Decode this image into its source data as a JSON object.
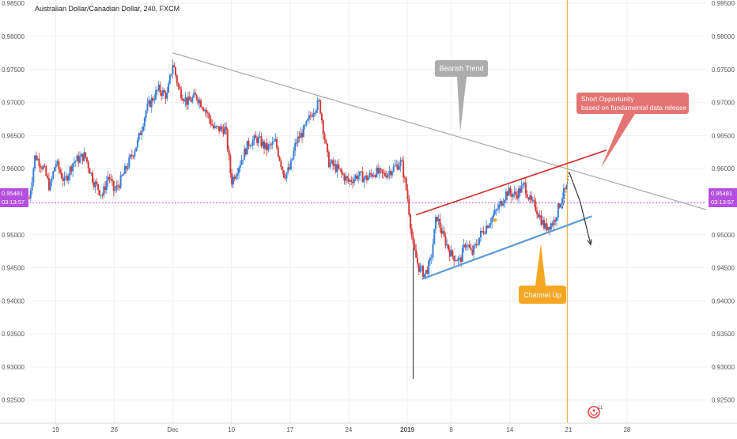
{
  "header": {
    "title": "Australian Dollar/Canadian Dollar, 240, FXCM"
  },
  "colors": {
    "up": "#3a7fd6",
    "down": "#d43a3a",
    "trend": "#a8a8a8",
    "resistance": "#d42a2a",
    "support": "#5a9ad6",
    "price_line": "#c050e0",
    "event_line": "#f5a623",
    "bubble_grey": "#a9a9a9",
    "bubble_red": "#e57373",
    "bubble_orange": "#f5a623"
  },
  "price_badge": {
    "price": "0.95481",
    "timer": "03:13:57"
  },
  "annotations": {
    "bearish": "Bearish Trend",
    "short_line1": "Short Opportunity",
    "short_line2": "based on fundamental data release",
    "channel": "Channel Up"
  },
  "event_marker": {
    "count": "11"
  },
  "chart_data": {
    "type": "candlestick",
    "title": "Australian Dollar/Canadian Dollar, 240, FXCM",
    "ylim": [
      0.9215,
      0.9855
    ],
    "yticks": [
      0.985,
      0.98,
      0.975,
      0.97,
      0.965,
      0.96,
      0.955,
      0.95,
      0.945,
      0.94,
      0.935,
      0.93,
      0.925
    ],
    "ytick_labels": [
      "0.98500",
      "0.98000",
      "0.97500",
      "0.97000",
      "0.96500",
      "0.96000",
      "0.95500",
      "0.95000",
      "0.94500",
      "0.94000",
      "0.93500",
      "0.93000",
      "0.92500"
    ],
    "xlim": [
      -0.45,
      11.1
    ],
    "xticks": [
      {
        "label": "19",
        "x": 0.0
      },
      {
        "label": "26",
        "x": 1.0
      },
      {
        "label": "Dec",
        "x": 2.0
      },
      {
        "label": "10",
        "x": 3.0
      },
      {
        "label": "17",
        "x": 4.0
      },
      {
        "label": "24",
        "x": 5.0
      },
      {
        "label": "2019",
        "x": 6.0
      },
      {
        "label": "8",
        "x": 6.75
      },
      {
        "label": "14",
        "x": 7.75
      },
      {
        "label": "21",
        "x": 8.75
      },
      {
        "label": "28",
        "x": 9.75
      }
    ],
    "current_price": 0.95481,
    "keypoints": [
      [
        -0.45,
        0.9555
      ],
      [
        -0.35,
        0.962
      ],
      [
        -0.2,
        0.96
      ],
      [
        -0.1,
        0.957
      ],
      [
        0.0,
        0.961
      ],
      [
        0.15,
        0.958
      ],
      [
        0.3,
        0.961
      ],
      [
        0.5,
        0.962
      ],
      [
        0.65,
        0.958
      ],
      [
        0.8,
        0.956
      ],
      [
        0.9,
        0.959
      ],
      [
        1.0,
        0.9565
      ],
      [
        1.1,
        0.958
      ],
      [
        1.25,
        0.961
      ],
      [
        1.4,
        0.964
      ],
      [
        1.55,
        0.969
      ],
      [
        1.75,
        0.972
      ],
      [
        1.9,
        0.971
      ],
      [
        2.0,
        0.976
      ],
      [
        2.1,
        0.972
      ],
      [
        2.25,
        0.97
      ],
      [
        2.4,
        0.971
      ],
      [
        2.55,
        0.969
      ],
      [
        2.7,
        0.966
      ],
      [
        2.9,
        0.966
      ],
      [
        3.0,
        0.958
      ],
      [
        3.15,
        0.961
      ],
      [
        3.3,
        0.964
      ],
      [
        3.45,
        0.9645
      ],
      [
        3.6,
        0.963
      ],
      [
        3.75,
        0.964
      ],
      [
        3.9,
        0.959
      ],
      [
        4.0,
        0.96
      ],
      [
        4.1,
        0.964
      ],
      [
        4.25,
        0.966
      ],
      [
        4.4,
        0.969
      ],
      [
        4.5,
        0.97
      ],
      [
        4.65,
        0.961
      ],
      [
        4.8,
        0.96
      ],
      [
        4.9,
        0.959
      ],
      [
        5.0,
        0.958
      ],
      [
        5.15,
        0.959
      ],
      [
        5.3,
        0.9585
      ],
      [
        5.45,
        0.9595
      ],
      [
        5.6,
        0.959
      ],
      [
        5.75,
        0.96
      ],
      [
        5.9,
        0.961
      ],
      [
        6.0,
        0.956
      ],
      [
        6.1,
        0.948
      ],
      [
        6.2,
        0.945
      ],
      [
        6.3,
        0.944
      ],
      [
        6.4,
        0.946
      ],
      [
        6.5,
        0.953
      ],
      [
        6.6,
        0.95
      ],
      [
        6.75,
        0.947
      ],
      [
        6.9,
        0.946
      ],
      [
        7.0,
        0.949
      ],
      [
        7.1,
        0.947
      ],
      [
        7.25,
        0.95
      ],
      [
        7.4,
        0.952
      ],
      [
        7.55,
        0.954
      ],
      [
        7.7,
        0.9565
      ],
      [
        7.85,
        0.956
      ],
      [
        8.0,
        0.9575
      ],
      [
        8.1,
        0.955
      ],
      [
        8.2,
        0.954
      ],
      [
        8.35,
        0.951
      ],
      [
        8.5,
        0.952
      ],
      [
        8.65,
        0.956
      ],
      [
        8.72,
        0.957
      ]
    ],
    "seed": 7,
    "spikes": [
      {
        "x": 6.1,
        "low": 0.9282
      }
    ],
    "lines": [
      {
        "name": "bearish-trend",
        "role": "trend",
        "p1": [
          2.0,
          0.9775
        ],
        "p2": [
          11.1,
          0.9538
        ],
        "width": 1.2
      },
      {
        "name": "channel-resistance",
        "role": "resistance",
        "p1": [
          6.15,
          0.953
        ],
        "p2": [
          9.4,
          0.9628
        ],
        "width": 1.6
      },
      {
        "name": "channel-support",
        "role": "support",
        "p1": [
          6.25,
          0.9433
        ],
        "p2": [
          9.15,
          0.9528
        ],
        "width": 2.2
      }
    ],
    "event_x": 8.73,
    "forecast_up": [
      [
        8.65,
        0.954
      ],
      [
        8.71,
        0.9565
      ],
      [
        8.76,
        0.9595
      ]
    ],
    "forecast_down": [
      [
        8.76,
        0.9595
      ],
      [
        8.95,
        0.955
      ],
      [
        9.13,
        0.9485
      ]
    ],
    "dot": {
      "x": 7.5,
      "y": 0.9522
    }
  }
}
